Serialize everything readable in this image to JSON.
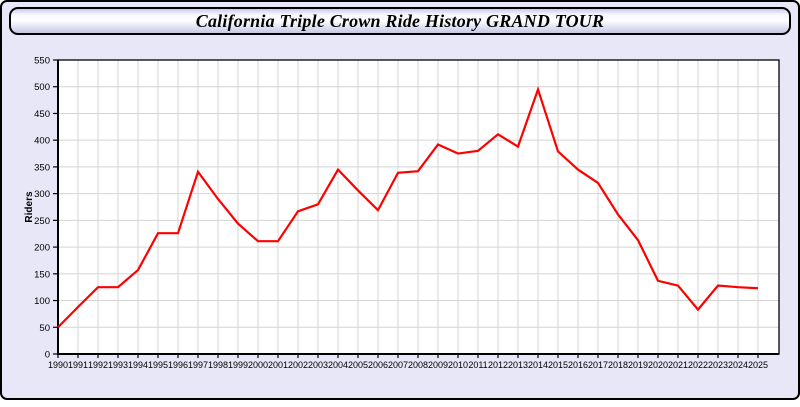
{
  "header": {
    "title": "California Triple Crown Ride History GRAND TOUR"
  },
  "colors": {
    "line": "#ff0000",
    "page_background": "#e7e7f7",
    "plot_background": "#ffffff",
    "gridline": "#d4d4d4",
    "axis": "#000000"
  },
  "chart_data": {
    "type": "line",
    "title": "California Triple Crown Ride History GRAND TOUR",
    "xlabel": "",
    "ylabel": "Riders",
    "ylim": [
      0,
      550
    ],
    "ytick_step": 50,
    "grid": true,
    "legend_position": "none",
    "x": [
      1990,
      1991,
      1992,
      1993,
      1994,
      1995,
      1996,
      1997,
      1998,
      1999,
      2000,
      2001,
      2002,
      2003,
      2004,
      2005,
      2006,
      2007,
      2008,
      2009,
      2010,
      2011,
      2012,
      2013,
      2014,
      2015,
      2016,
      2017,
      2018,
      2019,
      2020,
      2021,
      2022,
      2023,
      2024,
      2025
    ],
    "series": [
      {
        "name": "Riders",
        "color": "#ff0000",
        "values": [
          50,
          88,
          125,
          125,
          157,
          226,
          226,
          341,
          290,
          244,
          211,
          211,
          267,
          280,
          345,
          306,
          269,
          339,
          342,
          392,
          375,
          380,
          411,
          388,
          495,
          379,
          345,
          320,
          261,
          213,
          137,
          128,
          83,
          128,
          125,
          123
        ]
      }
    ]
  }
}
